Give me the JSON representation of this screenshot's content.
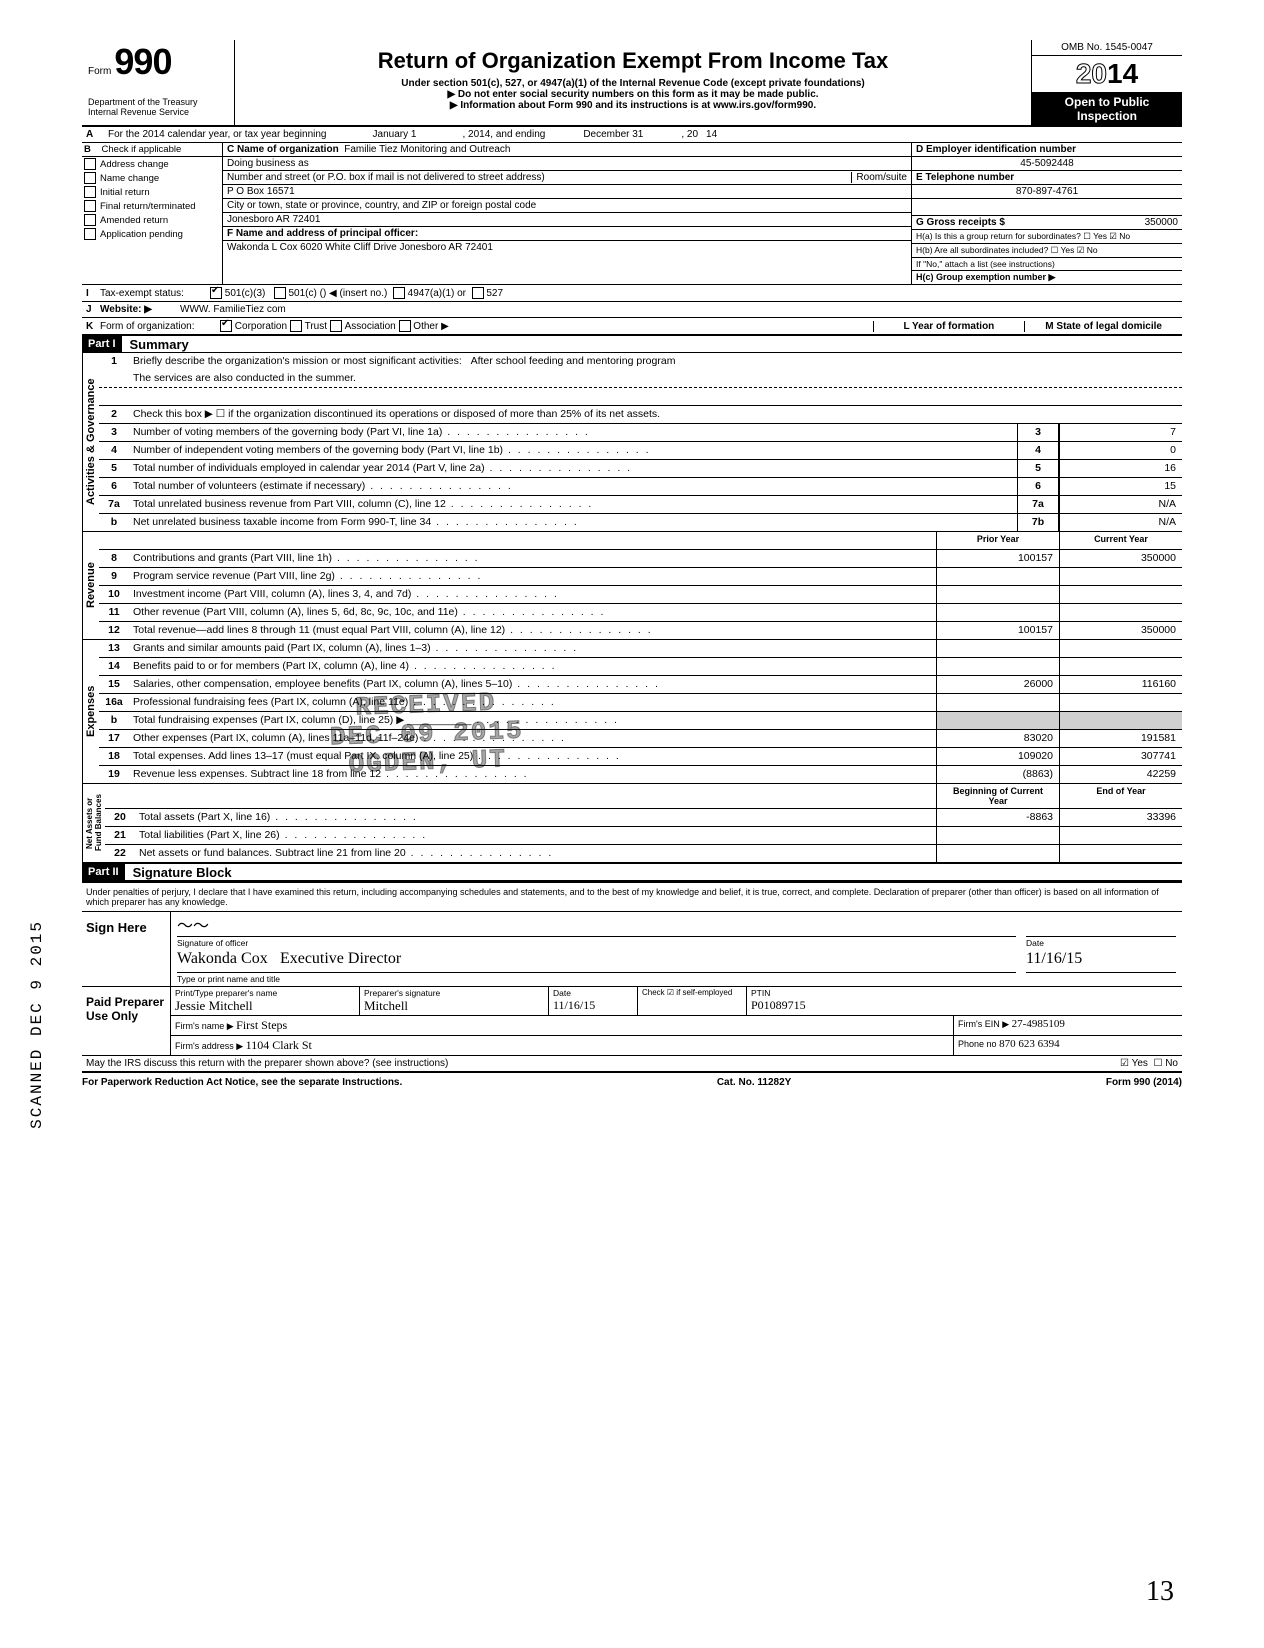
{
  "header": {
    "form_label": "Form",
    "form_number": "990",
    "dept1": "Department of the Treasury",
    "dept2": "Internal Revenue Service",
    "title": "Return of Organization Exempt From Income Tax",
    "subtitle1": "Under section 501(c), 527, or 4947(a)(1) of the Internal Revenue Code (except private foundations)",
    "subtitle2": "▶ Do not enter social security numbers on this form as it may be made public.",
    "subtitle3": "▶ Information about Form 990 and its instructions is at www.irs.gov/form990.",
    "omb": "OMB No. 1545-0047",
    "year": "2014",
    "open1": "Open to Public",
    "open2": "Inspection"
  },
  "rowA": {
    "ltr": "A",
    "text1": "For the 2014 calendar year, or tax year beginning",
    "begin": "January 1",
    "text2": ", 2014, and ending",
    "end": "December 31",
    "text3": ", 20",
    "endyr": "14"
  },
  "B": {
    "ltr": "B",
    "header": "Check if applicable",
    "opts": [
      "Address change",
      "Name change",
      "Initial return",
      "Final return/terminated",
      "Amended return",
      "Application pending"
    ]
  },
  "C": {
    "name_label": "C Name of organization",
    "name": "Familie Tiez Monitoring and Outreach",
    "dba_label": "Doing business as",
    "addr_label": "Number and street (or P.O. box if mail is not delivered to street address)",
    "room_label": "Room/suite",
    "addr": "P O Box 16571",
    "city_label": "City or town, state or province, country, and ZIP or foreign postal code",
    "city": "Jonesboro AR 72401",
    "f_label": "F Name and address of principal officer:",
    "f_name": "Wakonda L Cox 6020 White Cliff Drive Jonesboro AR 72401"
  },
  "D": {
    "label": "D Employer identification number",
    "val": "45-5092448",
    "e_label": "E Telephone number",
    "e_val": "870-897-4761",
    "g_label": "G Gross receipts $",
    "g_val": "350000",
    "ha": "H(a) Is this a group return for subordinates?",
    "hb": "H(b) Are all subordinates included?",
    "hnote": "If \"No,\" attach a list (see instructions)",
    "hc": "H(c) Group exemption number ▶"
  },
  "I": {
    "ltr": "I",
    "label": "Tax-exempt status:",
    "opt1": "501(c)(3)",
    "opt2": "501(c) (",
    "opt2b": ") ◀ (insert no.)",
    "opt3": "4947(a)(1) or",
    "opt4": "527"
  },
  "J": {
    "ltr": "J",
    "label": "Website: ▶",
    "val": "WWW. FamilieTiez com"
  },
  "K": {
    "ltr": "K",
    "label": "Form of organization:",
    "opts": [
      "Corporation",
      "Trust",
      "Association",
      "Other ▶"
    ],
    "l": "L Year of formation",
    "m": "M State of legal domicile"
  },
  "part1": {
    "header": "Part I",
    "title": "Summary"
  },
  "summary": {
    "line1_label": "Briefly describe the organization's mission or most significant activities:",
    "line1_val": "After school feeding and mentoring program",
    "line1_val2": "The services are also conducted in the summer.",
    "line2": "Check this box ▶ ☐ if the organization discontinued its operations or disposed of more than 25% of its net assets.",
    "rows": [
      {
        "no": "3",
        "desc": "Number of voting members of the governing body (Part VI, line 1a)",
        "box": "3",
        "val": "7"
      },
      {
        "no": "4",
        "desc": "Number of independent voting members of the governing body (Part VI, line 1b)",
        "box": "4",
        "val": "0"
      },
      {
        "no": "5",
        "desc": "Total number of individuals employed in calendar year 2014 (Part V, line 2a)",
        "box": "5",
        "val": "16"
      },
      {
        "no": "6",
        "desc": "Total number of volunteers (estimate if necessary)",
        "box": "6",
        "val": "15"
      },
      {
        "no": "7a",
        "desc": "Total unrelated business revenue from Part VIII, column (C), line 12",
        "box": "7a",
        "val": "N/A"
      },
      {
        "no": "b",
        "desc": "Net unrelated business taxable income from Form 990-T, line 34",
        "box": "7b",
        "val": "N/A"
      }
    ]
  },
  "revenue": {
    "prior_label": "Prior Year",
    "current_label": "Current Year",
    "rows": [
      {
        "no": "8",
        "desc": "Contributions and grants (Part VIII, line 1h)",
        "prior": "100157",
        "cur": "350000"
      },
      {
        "no": "9",
        "desc": "Program service revenue (Part VIII, line 2g)",
        "prior": "",
        "cur": ""
      },
      {
        "no": "10",
        "desc": "Investment income (Part VIII, column (A), lines 3, 4, and 7d)",
        "prior": "",
        "cur": ""
      },
      {
        "no": "11",
        "desc": "Other revenue (Part VIII, column (A), lines 5, 6d, 8c, 9c, 10c, and 11e)",
        "prior": "",
        "cur": ""
      },
      {
        "no": "12",
        "desc": "Total revenue—add lines 8 through 11 (must equal Part VIII, column (A), line 12)",
        "prior": "100157",
        "cur": "350000"
      }
    ]
  },
  "expenses": {
    "rows": [
      {
        "no": "13",
        "desc": "Grants and similar amounts paid (Part IX, column (A), lines 1–3)",
        "prior": "",
        "cur": ""
      },
      {
        "no": "14",
        "desc": "Benefits paid to or for members (Part IX, column (A), line 4)",
        "prior": "",
        "cur": ""
      },
      {
        "no": "15",
        "desc": "Salaries, other compensation, employee benefits (Part IX, column (A), lines 5–10)",
        "prior": "26000",
        "cur": "116160"
      },
      {
        "no": "16a",
        "desc": "Professional fundraising fees (Part IX, column (A), line 11e)",
        "prior": "",
        "cur": ""
      },
      {
        "no": "b",
        "desc": "Total fundraising expenses (Part IX, column (D), line 25) ▶ ___________",
        "prior": "shaded",
        "cur": "shaded"
      },
      {
        "no": "17",
        "desc": "Other expenses (Part IX, column (A), lines 11a–11d, 11f–24e)",
        "prior": "83020",
        "cur": "191581"
      },
      {
        "no": "18",
        "desc": "Total expenses. Add lines 13–17 (must equal Part IX, column (A), line 25)",
        "prior": "109020",
        "cur": "307741"
      },
      {
        "no": "19",
        "desc": "Revenue less expenses. Subtract line 18 from line 12",
        "prior": "(8863)",
        "cur": "42259"
      }
    ]
  },
  "netassets": {
    "beg_label": "Beginning of Current Year",
    "end_label": "End of Year",
    "rows": [
      {
        "no": "20",
        "desc": "Total assets (Part X, line 16)",
        "prior": "-8863",
        "cur": "33396"
      },
      {
        "no": "21",
        "desc": "Total liabilities (Part X, line 26)",
        "prior": "",
        "cur": ""
      },
      {
        "no": "22",
        "desc": "Net assets or fund balances. Subtract line 21 from line 20",
        "prior": "",
        "cur": ""
      }
    ]
  },
  "part2": {
    "header": "Part II",
    "title": "Signature Block"
  },
  "sig": {
    "declaration": "Under penalties of perjury, I declare that I have examined this return, including accompanying schedules and statements, and to the best of my knowledge and belief, it is true, correct, and complete. Declaration of preparer (other than officer) is based on all information of which preparer has any knowledge.",
    "sign_here": "Sign Here",
    "sig_officer": "Signature of officer",
    "date": "Date",
    "typed_name": "Wakonda Cox",
    "typed_title": "Executive Director",
    "typed_date": "11/16/15",
    "type_label": "Type or print name and title",
    "paid": "Paid Preparer Use Only",
    "prep_name_label": "Print/Type preparer's name",
    "prep_name": "Jessie Mitchell",
    "prep_sig_label": "Preparer's signature",
    "prep_sig": "Mitchell",
    "prep_date": "11/16/15",
    "check_self": "Check ☑ if self-employed",
    "ptin_label": "PTIN",
    "ptin": "P01089715",
    "firm_name_label": "Firm's name ▶",
    "firm_name": "First Steps",
    "firm_ein_label": "Firm's EIN ▶",
    "firm_ein": "27-4985109",
    "firm_addr_label": "Firm's address ▶",
    "firm_addr": "1104 Clark St",
    "phone_label": "Phone no",
    "phone": "870 623 6394",
    "irs_discuss": "May the IRS discuss this return with the preparer shown above? (see instructions)",
    "yes": "Yes",
    "no": "No"
  },
  "footer": {
    "left": "For Paperwork Reduction Act Notice, see the separate Instructions.",
    "mid": "Cat. No. 11282Y",
    "right": "Form 990 (2014)"
  },
  "stamp": {
    "l1": "RECEIVED",
    "l2": "DEC 09 2015",
    "l3": "OGDEN, UT"
  },
  "scanned": "SCANNED DEC 9 2015",
  "corner": "13"
}
